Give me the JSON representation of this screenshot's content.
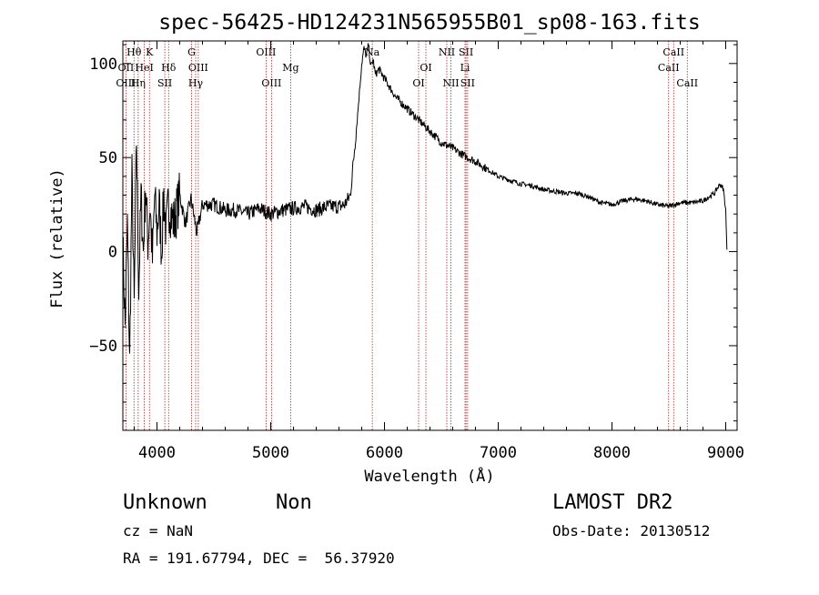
{
  "chart_data": {
    "type": "line",
    "title": "spec-56425-HD124231N565955B01_sp08-163.fits",
    "xlabel": "Wavelength (Å)",
    "ylabel": "Flux (relative)",
    "xlim": [
      3700,
      9100
    ],
    "ylim": [
      -95,
      112
    ],
    "x_ticks": [
      4000,
      5000,
      6000,
      7000,
      8000,
      9000
    ],
    "y_ticks": [
      -50,
      0,
      50,
      100
    ],
    "y_tick_labels": [
      "−50",
      "0",
      "50",
      "100"
    ],
    "series": [
      {
        "color": "#000000",
        "points": [
          [
            3700,
            5
          ],
          [
            3720,
            -40
          ],
          [
            3740,
            15
          ],
          [
            3760,
            -60
          ],
          [
            3780,
            40
          ],
          [
            3800,
            -30
          ],
          [
            3820,
            60
          ],
          [
            3840,
            -20
          ],
          [
            3860,
            30
          ],
          [
            3880,
            0
          ],
          [
            3900,
            35
          ],
          [
            3920,
            5
          ],
          [
            3940,
            25
          ],
          [
            3960,
            -5
          ],
          [
            3980,
            30
          ],
          [
            4000,
            10
          ],
          [
            4020,
            25
          ],
          [
            4040,
            0
          ],
          [
            4060,
            30
          ],
          [
            4080,
            10
          ],
          [
            4100,
            25
          ],
          [
            4150,
            15
          ],
          [
            4200,
            30
          ],
          [
            4250,
            15
          ],
          [
            4300,
            28
          ],
          [
            4350,
            10
          ],
          [
            4400,
            25
          ],
          [
            4500,
            25
          ],
          [
            4600,
            22
          ],
          [
            4700,
            22
          ],
          [
            4800,
            20
          ],
          [
            4900,
            23
          ],
          [
            5000,
            20
          ],
          [
            5100,
            22
          ],
          [
            5200,
            23
          ],
          [
            5300,
            24
          ],
          [
            5400,
            22
          ],
          [
            5500,
            24
          ],
          [
            5600,
            24
          ],
          [
            5650,
            25
          ],
          [
            5700,
            30
          ],
          [
            5730,
            50
          ],
          [
            5760,
            70
          ],
          [
            5780,
            85
          ],
          [
            5800,
            100
          ],
          [
            5820,
            108
          ],
          [
            5840,
            104
          ],
          [
            5860,
            110
          ],
          [
            5880,
            98
          ],
          [
            5900,
            102
          ],
          [
            5920,
            94
          ],
          [
            5950,
            97
          ],
          [
            6000,
            92
          ],
          [
            6050,
            87
          ],
          [
            6100,
            82
          ],
          [
            6200,
            76
          ],
          [
            6300,
            70
          ],
          [
            6400,
            64
          ],
          [
            6500,
            58
          ],
          [
            6600,
            55
          ],
          [
            6700,
            51
          ],
          [
            6800,
            48
          ],
          [
            6900,
            44
          ],
          [
            7000,
            40
          ],
          [
            7100,
            38
          ],
          [
            7200,
            36
          ],
          [
            7300,
            35
          ],
          [
            7400,
            33
          ],
          [
            7500,
            32
          ],
          [
            7600,
            31
          ],
          [
            7700,
            31
          ],
          [
            7800,
            29
          ],
          [
            7900,
            26
          ],
          [
            8000,
            25
          ],
          [
            8100,
            27
          ],
          [
            8200,
            28
          ],
          [
            8300,
            27
          ],
          [
            8400,
            25
          ],
          [
            8500,
            24
          ],
          [
            8600,
            26
          ],
          [
            8700,
            26
          ],
          [
            8800,
            27
          ],
          [
            8900,
            31
          ],
          [
            8950,
            36
          ],
          [
            8980,
            33
          ],
          [
            9000,
            22
          ],
          [
            9010,
            1
          ]
        ]
      }
    ],
    "line_markers": [
      {
        "label": "Hθ",
        "wavelength": 3798,
        "row": 1
      },
      {
        "label": "OII",
        "wavelength": 3727,
        "row": 2
      },
      {
        "label": "OIII",
        "wavelength": 3727,
        "row": 3
      },
      {
        "label": "K",
        "wavelength": 3934,
        "row": 1
      },
      {
        "label": "HeI",
        "wavelength": 3889,
        "row": 2
      },
      {
        "label": "Hη",
        "wavelength": 3835,
        "row": 3
      },
      {
        "label": "Hδ",
        "wavelength": 4102,
        "row": 2
      },
      {
        "label": "SII",
        "wavelength": 4069,
        "row": 3
      },
      {
        "label": "G",
        "wavelength": 4304,
        "row": 1
      },
      {
        "label": "OIII",
        "wavelength": 4363,
        "row": 2
      },
      {
        "label": "Hγ",
        "wavelength": 4340,
        "row": 3
      },
      {
        "label": "OIII",
        "wavelength": 4959,
        "row": 1
      },
      {
        "label": "OIII",
        "wavelength": 5007,
        "row": 3
      },
      {
        "label": "Mg",
        "wavelength": 5175,
        "row": 2
      },
      {
        "label": "Na",
        "wavelength": 5893,
        "row": 1
      },
      {
        "label": "OI",
        "wavelength": 6364,
        "row": 2
      },
      {
        "label": "OI",
        "wavelength": 6300,
        "row": 3
      },
      {
        "label": "NII",
        "wavelength": 6548,
        "row": 1
      },
      {
        "label": "SII",
        "wavelength": 6717,
        "row": 1
      },
      {
        "label": "Li",
        "wavelength": 6708,
        "row": 2
      },
      {
        "label": "NII",
        "wavelength": 6584,
        "row": 3
      },
      {
        "label": "SII",
        "wavelength": 6731,
        "row": 3
      },
      {
        "label": "CaII",
        "wavelength": 8542,
        "row": 1
      },
      {
        "label": "CaII",
        "wavelength": 8498,
        "row": 2
      },
      {
        "label": "CaII",
        "wavelength": 8662,
        "row": 3
      }
    ],
    "grid": false,
    "legend": "none"
  },
  "info": {
    "object_class": "Unknown",
    "subclass": "Non",
    "survey": "LAMOST DR2",
    "cz": "cz = NaN",
    "obs_date": "Obs-Date: 20130512",
    "coords": "RA = 191.67794, DEC =  56.37920"
  },
  "colors": {
    "line_marker": "#b22222",
    "spectrum": "#000000",
    "axes": "#000000",
    "background": "#ffffff"
  }
}
